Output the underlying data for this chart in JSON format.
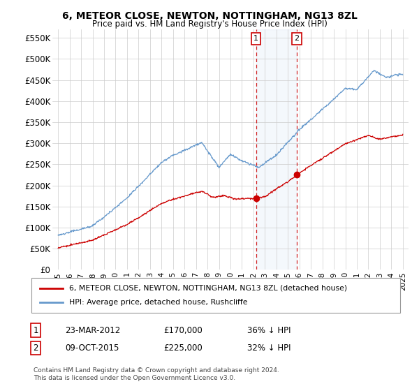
{
  "title": "6, METEOR CLOSE, NEWTON, NOTTINGHAM, NG13 8ZL",
  "subtitle": "Price paid vs. HM Land Registry's House Price Index (HPI)",
  "ylabel_ticks": [
    "£0",
    "£50K",
    "£100K",
    "£150K",
    "£200K",
    "£250K",
    "£300K",
    "£350K",
    "£400K",
    "£450K",
    "£500K",
    "£550K"
  ],
  "ytick_values": [
    0,
    50000,
    100000,
    150000,
    200000,
    250000,
    300000,
    350000,
    400000,
    450000,
    500000,
    550000
  ],
  "ylim": [
    0,
    570000
  ],
  "legend_line1": "6, METEOR CLOSE, NEWTON, NOTTINGHAM, NG13 8ZL (detached house)",
  "legend_line2": "HPI: Average price, detached house, Rushcliffe",
  "annotation1_date": "23-MAR-2012",
  "annotation1_price": "£170,000",
  "annotation1_hpi": "36% ↓ HPI",
  "annotation2_date": "09-OCT-2015",
  "annotation2_price": "£225,000",
  "annotation2_hpi": "32% ↓ HPI",
  "footnote": "Contains HM Land Registry data © Crown copyright and database right 2024.\nThis data is licensed under the Open Government Licence v3.0.",
  "line_color_red": "#cc0000",
  "line_color_blue": "#6699cc",
  "bg_color": "#ffffff",
  "grid_color": "#cccccc",
  "sale1_year": 2012.22,
  "sale1_price": 170000,
  "sale2_year": 2015.77,
  "sale2_price": 225000
}
